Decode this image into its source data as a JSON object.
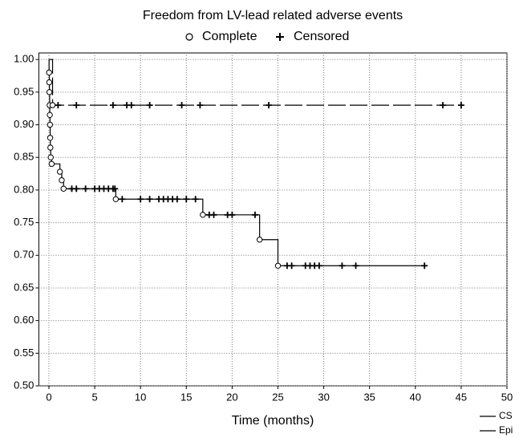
{
  "chart_data": {
    "type": "survival",
    "title": "Freedom from LV-lead related adverse events",
    "complete_label": "Complete",
    "censored_label": "Censored",
    "x_label": "Time (months)",
    "xlim": [
      -1.1,
      50
    ],
    "ylim": [
      0.5,
      1.01
    ],
    "xticks": [
      0,
      5,
      10,
      15,
      20,
      25,
      30,
      35,
      40,
      45,
      50
    ],
    "yticks": [
      {
        "value": 0.5,
        "label": "0.50"
      },
      {
        "value": 0.55,
        "label": "0.55"
      },
      {
        "value": 0.6,
        "label": "0.60"
      },
      {
        "value": 0.65,
        "label": "0.65"
      },
      {
        "value": 0.7,
        "label": "0.70"
      },
      {
        "value": 0.75,
        "label": "0.75"
      },
      {
        "value": 0.8,
        "label": "0.80"
      },
      {
        "value": 0.85,
        "label": "0.85"
      },
      {
        "value": 0.9,
        "label": "0.90"
      },
      {
        "value": 0.95,
        "label": "0.95"
      },
      {
        "value": 1.0,
        "label": "1.00"
      }
    ],
    "grid": true,
    "series": [
      {
        "name": "CS",
        "color": "#000000",
        "dash": "solid",
        "x": [
          0,
          0.02,
          0.04,
          0.06,
          0.08,
          0.1,
          0.12,
          0.14,
          0.16,
          0.2,
          0.3,
          1.2,
          1.4,
          1.6,
          7.3,
          16.8,
          23,
          25,
          41
        ],
        "values": [
          1.0,
          0.98,
          0.965,
          0.95,
          0.93,
          0.915,
          0.9,
          0.88,
          0.865,
          0.85,
          0.84,
          0.828,
          0.815,
          0.802,
          0.786,
          0.762,
          0.724,
          0.684,
          0.684
        ],
        "censored_x": [
          2.5,
          3,
          4,
          5,
          5.5,
          6,
          6.5,
          7,
          7.2,
          8,
          10,
          11,
          12,
          12.5,
          13,
          13.5,
          14,
          15,
          16,
          17.5,
          18,
          19.5,
          20,
          22.5,
          26,
          26.5,
          28,
          28.5,
          29,
          29.5,
          32,
          33.5,
          41
        ],
        "censored_values": [
          0.802,
          0.802,
          0.802,
          0.802,
          0.802,
          0.802,
          0.802,
          0.802,
          0.802,
          0.786,
          0.786,
          0.786,
          0.786,
          0.786,
          0.786,
          0.786,
          0.786,
          0.786,
          0.786,
          0.762,
          0.762,
          0.762,
          0.762,
          0.762,
          0.684,
          0.684,
          0.684,
          0.684,
          0.684,
          0.684,
          0.684,
          0.684,
          0.684
        ]
      },
      {
        "name": "Epi",
        "color": "#000000",
        "dash": "dashed",
        "x": [
          0,
          0.4,
          45
        ],
        "values": [
          1.0,
          0.93,
          0.93
        ],
        "censored_x": [
          1,
          3,
          7,
          8.5,
          9,
          11,
          14.5,
          16.5,
          24,
          43,
          45
        ],
        "censored_values": [
          0.93,
          0.93,
          0.93,
          0.93,
          0.93,
          0.93,
          0.93,
          0.93,
          0.93,
          0.93,
          0.93
        ]
      }
    ]
  }
}
